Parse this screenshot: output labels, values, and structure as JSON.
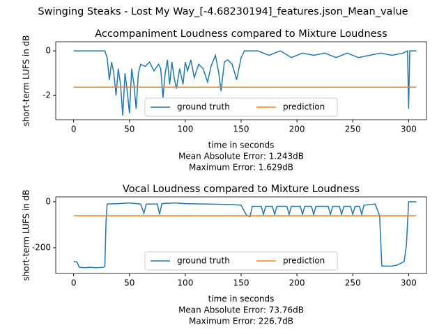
{
  "suptitle": "Swinging Steaks - Lost My Way_[-4.68230194]_features.json_Mean_value",
  "chart_data": [
    {
      "type": "line",
      "title": "Accompaniment Loudness compared to Mixture Loudness",
      "xlabel": "time in seconds",
      "ylabel": "short-term LUFS in dB",
      "annotations": [
        "Mean Absolute Error: 1.243dB",
        "Maximum Error: 1.629dB"
      ],
      "xlim": [
        -16,
        316
      ],
      "xticks": [
        0,
        50,
        100,
        150,
        200,
        250,
        300
      ],
      "ylim": [
        -3.09,
        0.41
      ],
      "yticks": [
        -2,
        0
      ],
      "legend": "lower center",
      "series": [
        {
          "name": "ground truth",
          "color": "#1f77b4",
          "x": [
            0,
            10,
            20,
            28,
            30,
            32,
            34,
            36,
            38,
            40,
            42,
            44,
            46,
            48,
            50,
            52,
            54,
            56,
            58,
            60,
            64,
            68,
            72,
            76,
            78,
            80,
            82,
            84,
            86,
            88,
            90,
            92,
            95,
            98,
            100,
            102,
            105,
            108,
            112,
            116,
            120,
            123,
            127,
            130,
            132,
            135,
            138,
            142,
            146,
            150,
            153,
            165,
            175,
            180,
            185,
            195,
            205,
            215,
            225,
            235,
            245,
            255,
            265,
            275,
            285,
            295,
            299,
            300,
            301,
            307
          ],
          "values": [
            0,
            0,
            0,
            0,
            -0.3,
            -1.3,
            -0.5,
            -1.0,
            -2.0,
            -0.8,
            -1.5,
            -2.9,
            -1.0,
            -1.8,
            -2.8,
            -0.8,
            -1.5,
            -2.6,
            -1.0,
            -0.6,
            -0.7,
            -0.5,
            -0.9,
            -0.6,
            -0.8,
            -2.1,
            -1.0,
            -0.4,
            -1.5,
            -0.5,
            -1.2,
            -1.7,
            -0.8,
            -1.5,
            -0.5,
            -0.9,
            -0.4,
            -1.2,
            -0.6,
            -0.8,
            -1.4,
            -0.7,
            -0.2,
            -1.0,
            -1.8,
            -0.5,
            -0.4,
            -0.6,
            -1.3,
            -0.3,
            0,
            0,
            -0.2,
            -0.1,
            0,
            -0.3,
            -0.1,
            -0.2,
            -0.1,
            -0.3,
            -0.1,
            -0.3,
            -0.2,
            -0.1,
            -0.2,
            -0.1,
            0,
            -2.6,
            0,
            0
          ]
        },
        {
          "name": "prediction",
          "color": "#ff7f0e",
          "x": [
            0,
            307
          ],
          "values": [
            -1.629,
            -1.629
          ]
        }
      ]
    },
    {
      "type": "line",
      "title": "Vocal Loudness compared to Mixture Loudness",
      "xlabel": "time in seconds",
      "ylabel": "short-term LUFS in dB",
      "annotations": [
        "Mean Absolute Error: 73.76dB",
        "Maximum Error: 226.7dB"
      ],
      "xlim": [
        -16,
        316
      ],
      "xticks": [
        0,
        50,
        100,
        150,
        200,
        250,
        300
      ],
      "ylim": [
        -312,
        21
      ],
      "yticks": [
        -200,
        0
      ],
      "legend": "lower center",
      "series": [
        {
          "name": "ground truth",
          "color": "#1f77b4",
          "x": [
            0,
            3,
            5,
            10,
            15,
            20,
            27,
            28,
            29,
            30,
            40,
            50,
            60,
            63,
            65,
            75,
            77,
            79,
            90,
            100,
            120,
            140,
            150,
            155,
            158,
            160,
            168,
            170,
            172,
            178,
            180,
            182,
            191,
            193,
            195,
            203,
            205,
            207,
            213,
            215,
            217,
            228,
            230,
            232,
            238,
            240,
            242,
            248,
            250,
            252,
            256,
            258,
            260,
            270,
            274,
            276,
            285,
            290,
            296,
            298,
            300,
            307
          ],
          "values": [
            -260,
            -262,
            -285,
            -287,
            -285,
            -287,
            -285,
            -280,
            -90,
            -10,
            -8,
            -5,
            -10,
            -50,
            -10,
            -10,
            -55,
            -8,
            -5,
            -8,
            -10,
            -12,
            -15,
            -60,
            -65,
            -20,
            -20,
            -55,
            -20,
            -20,
            -55,
            -20,
            -20,
            -55,
            -20,
            -20,
            -55,
            -20,
            -20,
            -55,
            -20,
            -20,
            -55,
            -20,
            -20,
            -55,
            -20,
            -20,
            -55,
            -20,
            -20,
            -55,
            -15,
            -10,
            -60,
            -280,
            -280,
            -275,
            -260,
            -190,
            0,
            0
          ]
        },
        {
          "name": "prediction",
          "color": "#ff7f0e",
          "x": [
            0,
            307
          ],
          "values": [
            -60.6,
            -60.6
          ]
        }
      ]
    }
  ]
}
